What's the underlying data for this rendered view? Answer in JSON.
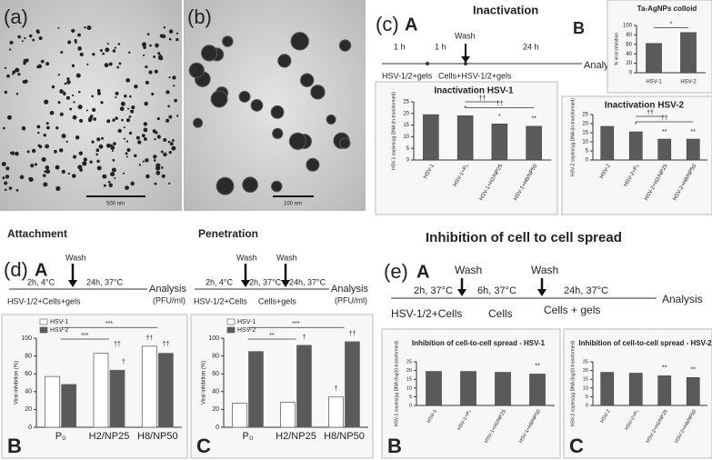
{
  "panels": {
    "a": {
      "label": "(a)",
      "scale_bar": "500 nm"
    },
    "b": {
      "label": "(b)",
      "scale_bar": "100 nm"
    },
    "c": {
      "label": "(c)",
      "sub_a": "A",
      "sub_b": "B",
      "title": "Inactivation",
      "timeline": [
        "1 h",
        "1 h",
        "Wash",
        "24 h",
        "HSV-1/2+gels",
        "Cells+HSV-1/2+gels",
        "Analysis"
      ]
    },
    "d": {
      "label": "(d)",
      "sub_a": "A",
      "title_a": "Attachment",
      "title_b": "Penetration",
      "attachment": [
        "Wash",
        "2h, 4°C",
        "24h, 37°C",
        "Analysis",
        "(PFU/ml)",
        "HSV-1/2+Cells+gels"
      ],
      "penetration": [
        "Wash",
        "Wash",
        "2h, 4°C",
        "2h, 37°C",
        "24h, 37°C",
        "Analysis",
        "(PFU/ml)",
        "HSV-1/2+Cells",
        "Cells+gels"
      ]
    },
    "e": {
      "label": "(e)",
      "sub_a": "A",
      "title": "Inhibition of cell to cell spread",
      "timeline": [
        "Wash",
        "Wash",
        "2h, 37°C",
        "6h, 37°C",
        "24h, 37°C",
        "Analysis",
        "HSV-1/2+Cells",
        "Cells",
        "Cells + gels"
      ]
    }
  },
  "chart_data": [
    {
      "type": "bar",
      "title": "Ta-AgNPs colloid",
      "ylabel": "% viral inhibition",
      "categories": [
        "HSV-1",
        "HSV-2"
      ],
      "values": [
        62,
        85
      ],
      "color": "#5a5a5a",
      "ylim": [
        0,
        100
      ],
      "yticks": [
        0,
        20,
        40,
        60,
        80,
        100
      ],
      "annotations": [
        "*"
      ]
    },
    {
      "type": "bar",
      "title": "Inactivation HSV-1",
      "ylabel": "HSV-1 copies/µg DNA (ln-transformed)",
      "categories": [
        "HSV-1",
        "HSV-1+P₀",
        "HSV-1+H2/NP25",
        "HSV-1+H8/NP50"
      ],
      "values": [
        19.5,
        19,
        15.5,
        14.5
      ],
      "color": "#5a5a5a",
      "ylim": [
        0,
        25
      ],
      "yticks": [
        0,
        5,
        10,
        15,
        20,
        25
      ],
      "annotations": [
        "*",
        "*",
        "**",
        "††",
        "††"
      ]
    },
    {
      "type": "bar",
      "title": "Inactivation HSV-2",
      "ylabel": "HSV-2 copies/µg DNA (ln-transformed)",
      "categories": [
        "HSV-2",
        "HSV-2+P₀",
        "HSV-2+H2/NP25",
        "HSV-2+H8/NP50"
      ],
      "values": [
        18.5,
        15.5,
        11.5,
        11.5
      ],
      "color": "#5a5a5a",
      "ylim": [
        0,
        25
      ],
      "yticks": [
        0,
        5,
        10,
        15,
        20,
        25
      ],
      "annotations": [
        "*",
        "**",
        "**",
        "††",
        "††"
      ]
    },
    {
      "type": "grouped-bar",
      "panel_label": "B",
      "ylabel": "Viral inhibition (%)",
      "categories": [
        "P₀",
        "H2/NP25",
        "H8/NP50"
      ],
      "series": [
        {
          "name": "HSV-1",
          "color": "#ffffff",
          "values": [
            57,
            83,
            91
          ]
        },
        {
          "name": "HSV-2",
          "color": "#5a5a5a",
          "values": [
            48,
            64,
            83
          ]
        }
      ],
      "ylim": [
        0,
        100
      ],
      "yticks": [
        0,
        20,
        40,
        60,
        80,
        100
      ],
      "annotations": [
        "***",
        "***",
        "††",
        "†",
        "††",
        "††"
      ]
    },
    {
      "type": "grouped-bar",
      "panel_label": "C",
      "ylabel": "Viral inhibition (%)",
      "categories": [
        "P₀",
        "H2/NP25",
        "H8/NP50"
      ],
      "series": [
        {
          "name": "HSV-1",
          "color": "#ffffff",
          "values": [
            27,
            28,
            34
          ]
        },
        {
          "name": "HSV-2",
          "color": "#5a5a5a",
          "values": [
            85,
            92,
            96
          ]
        }
      ],
      "ylim": [
        0,
        100
      ],
      "yticks": [
        0,
        20,
        40,
        60,
        80,
        100
      ],
      "annotations": [
        "***",
        "**",
        "†",
        "††",
        "†"
      ]
    },
    {
      "type": "bar",
      "panel_label": "B",
      "title": "Inhibition of cell-to-cell spread - HSV-1",
      "ylabel": "HSV-1 copies/µg DNA (log10-transformed)",
      "categories": [
        "HSV-1",
        "HSV-1+P₀",
        "HSV-1+H2/NP25",
        "HSV-1+H8/NP50"
      ],
      "values": [
        19.5,
        19.5,
        19,
        18
      ],
      "color": "#5a5a5a",
      "ylim": [
        0,
        25
      ],
      "yticks": [
        0,
        5,
        10,
        15,
        20,
        25
      ],
      "annotations": [
        "**"
      ]
    },
    {
      "type": "bar",
      "panel_label": "C",
      "title": "Inhibition of cell-to-cell spread - HSV-2",
      "ylabel": "HSV-2 copies/µg DNA (log10-transformed)",
      "categories": [
        "HSV-2",
        "HSV-2+P₀",
        "HSV-2+H2/NP25",
        "HSV-2+H8/NP50"
      ],
      "values": [
        19,
        18.5,
        17,
        16
      ],
      "color": "#5a5a5a",
      "ylim": [
        0,
        25
      ],
      "yticks": [
        0,
        5,
        10,
        15,
        20,
        25
      ],
      "annotations": [
        "**",
        "**"
      ]
    }
  ]
}
